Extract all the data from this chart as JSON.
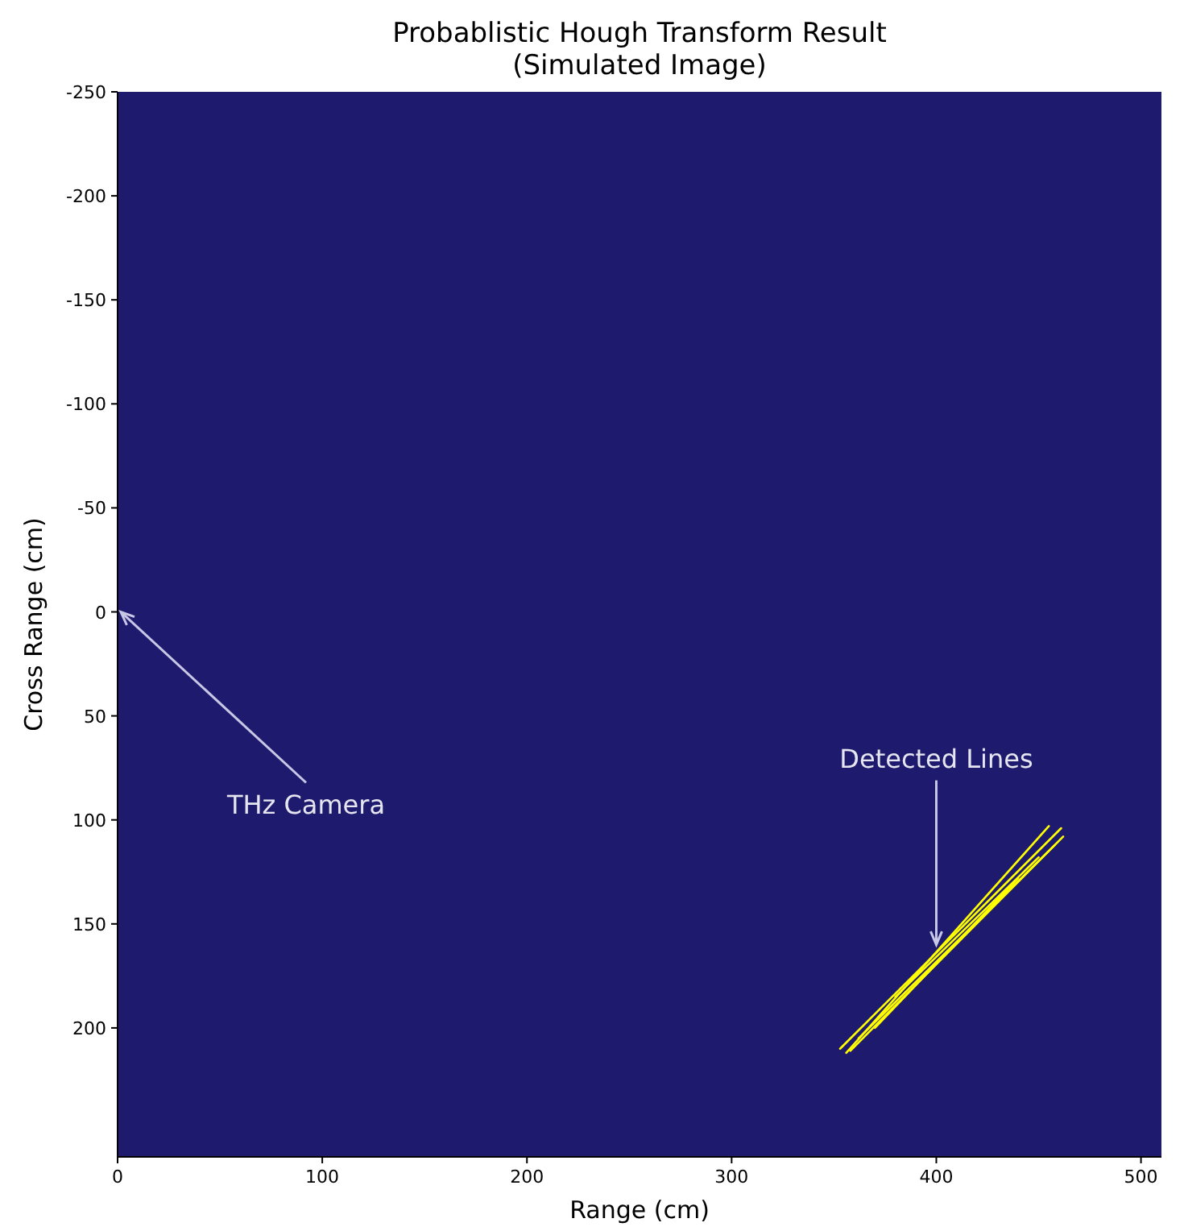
{
  "chart_data": {
    "type": "line",
    "title": "Probablistic Hough Transform Result\n(Simulated Image)",
    "xlabel": "Range (cm)",
    "ylabel": "Cross Range (cm)",
    "xlim": [
      0,
      510
    ],
    "ylim": [
      262,
      -250
    ],
    "xticks": [
      0,
      100,
      200,
      300,
      400,
      500
    ],
    "yticks": [
      -250,
      -200,
      -150,
      -100,
      -50,
      0,
      50,
      100,
      150,
      200
    ],
    "grid": false,
    "marker": "none",
    "line_style": "solid",
    "series": [
      {
        "color": "#ffff00",
        "x": [
          353,
          461
        ],
        "values": [
          210,
          104
        ]
      },
      {
        "color": "#ffff00",
        "x": [
          356,
          455
        ],
        "values": [
          212,
          103
        ]
      },
      {
        "color": "#ffff00",
        "x": [
          358,
          462
        ],
        "values": [
          211,
          108
        ]
      },
      {
        "color": "#ffff00",
        "x": [
          362,
          458
        ],
        "values": [
          205,
          112
        ]
      },
      {
        "color": "#ffff00",
        "x": [
          370,
          440
        ],
        "values": [
          200,
          128
        ]
      },
      {
        "color": "#ffff00",
        "x": [
          380,
          450
        ],
        "values": [
          185,
          118
        ]
      }
    ],
    "annotations": [
      "THz Camera",
      {
        "text": "Detected Lines",
        "x": 400,
        "y": 160
      }
    ]
  }
}
